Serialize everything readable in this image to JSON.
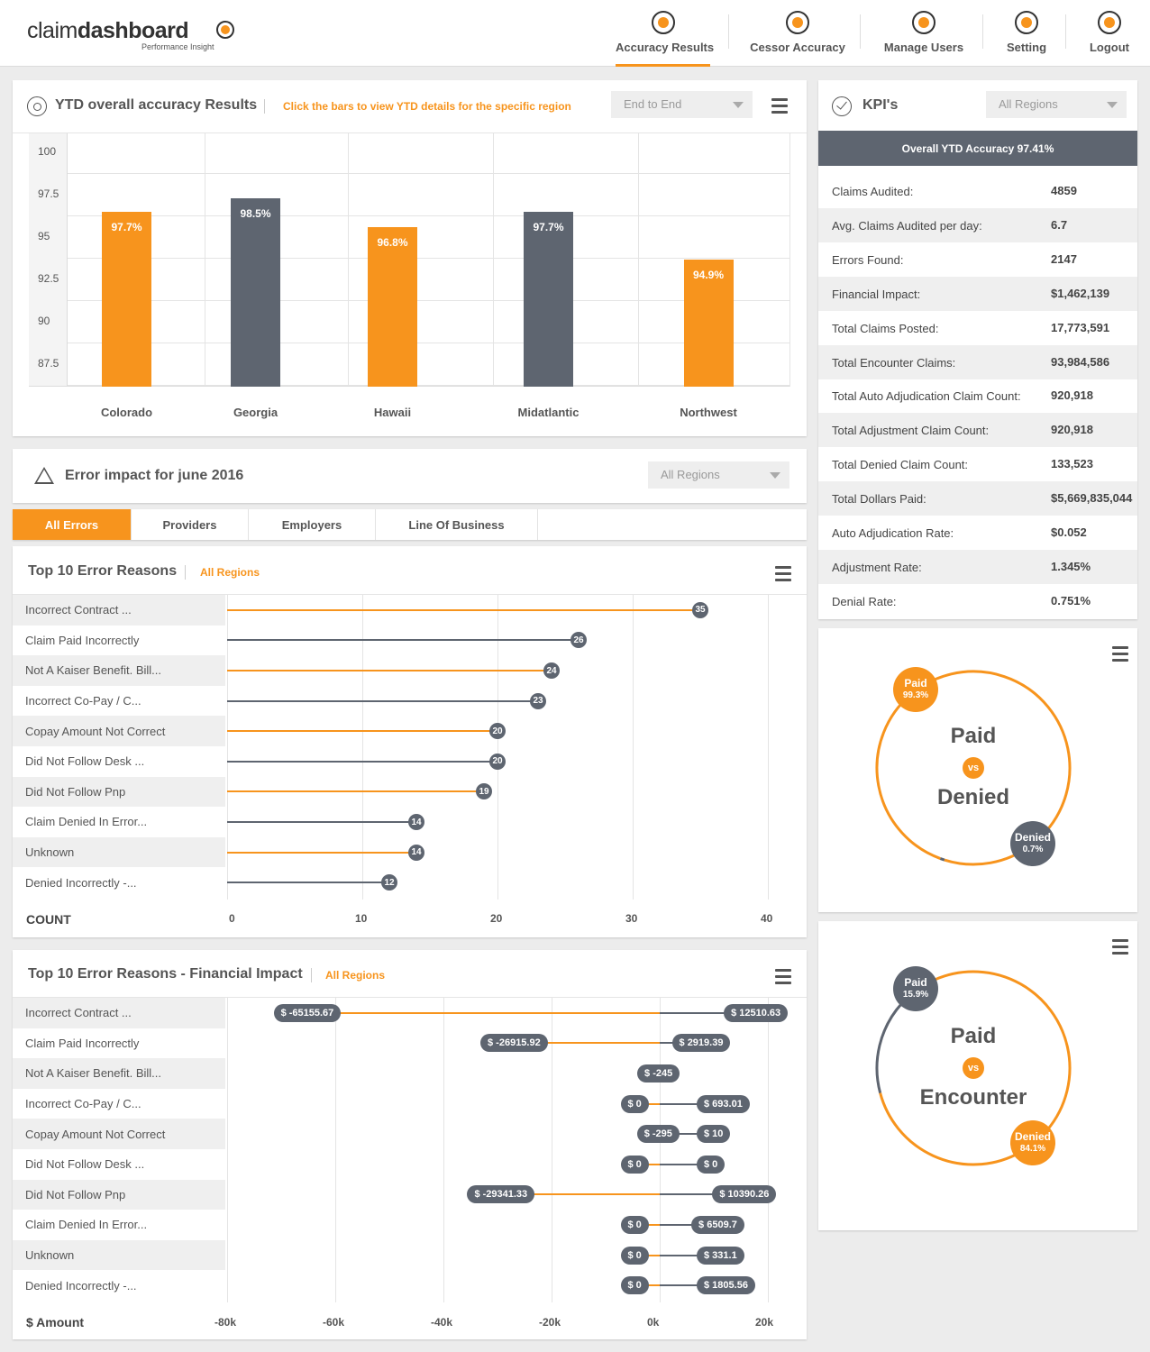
{
  "brand": {
    "logo_light": "claim",
    "logo_bold": "dashboard",
    "tagline": "Performance Insight"
  },
  "nav": [
    {
      "label": "Accuracy Results",
      "icon": "target-icon",
      "active": true
    },
    {
      "label": "Cessor Accuracy",
      "icon": "accuracy-icon",
      "active": false
    },
    {
      "label": "Manage Users",
      "icon": "users-icon",
      "active": false
    },
    {
      "label": "Setting",
      "icon": "gear-icon",
      "active": false
    },
    {
      "label": "Logout",
      "icon": "power-icon",
      "active": false
    }
  ],
  "ytd": {
    "title": "YTD overall accuracy Results",
    "hint": "Click the bars to view YTD details for the specific region",
    "select": "End to End"
  },
  "chart_data": [
    {
      "type": "bar",
      "categories": [
        "Colorado",
        "Georgia",
        "Hawaii",
        "Midatlantic",
        "Northwest"
      ],
      "values": [
        97.7,
        98.5,
        96.8,
        97.7,
        94.9
      ],
      "labels": [
        "97.7%",
        "98.5%",
        "96.8%",
        "97.7%",
        "94.9%"
      ],
      "colors": [
        "#f7941d",
        "#5e6570",
        "#f7941d",
        "#5e6570",
        "#f7941d"
      ],
      "yticks": [
        "100",
        "97.5",
        "95",
        "92.5",
        "90",
        "87.5"
      ],
      "ylim": [
        85,
        100
      ],
      "grid": true
    },
    {
      "type": "bar",
      "orientation": "horizontal",
      "categories": [
        "Incorrect Contract ...",
        "Claim Paid Incorrectly",
        "Not A Kaiser Benefit.  Bill...",
        "Incorrect Co-Pay / C...",
        "Copay Amount Not Correct",
        "Did Not Follow Desk ...",
        "Did Not Follow Pnp",
        "Claim Denied In Error...",
        "Unknown",
        "Denied Incorrectly -..."
      ],
      "values": [
        35,
        26,
        24,
        23,
        20,
        20,
        19,
        14,
        14,
        12
      ],
      "xticks": [
        "0",
        "10",
        "20",
        "30",
        "40"
      ],
      "xlabel": "COUNT",
      "xlim": [
        0,
        40
      ]
    },
    {
      "type": "bar",
      "orientation": "horizontal",
      "categories": [
        "Incorrect Contract ...",
        "Claim Paid Incorrectly",
        "Not A Kaiser Benefit.  Bill...",
        "Incorrect Co-Pay / C...",
        "Copay Amount Not Correct",
        "Did Not Follow Desk ...",
        "Did Not Follow Pnp",
        "Claim Denied In Error...",
        "Unknown",
        "Denied Incorrectly -..."
      ],
      "negative": [
        -65155.67,
        -26915.92,
        -245,
        0,
        -295,
        0,
        -29341.33,
        0,
        0,
        0
      ],
      "positive": [
        12510.63,
        2919.39,
        null,
        693.01,
        10,
        0,
        10390.26,
        6509.7,
        331.1,
        1805.56
      ],
      "negative_labels": [
        "$ -65155.67",
        "$ -26915.92",
        "$ -245",
        "$ 0",
        "$ -295",
        "$ 0",
        "$ -29341.33",
        "$ 0",
        "$ 0",
        "$ 0"
      ],
      "positive_labels": [
        "$ 12510.63",
        "$ 2919.39",
        "",
        "$ 693.01",
        "$ 10",
        "$ 0",
        "$ 10390.26",
        "$ 6509.7",
        "$ 331.1",
        "$ 1805.56"
      ],
      "xticks": [
        "-80k",
        "-60k",
        "-40k",
        "-20k",
        "0k",
        "20k"
      ],
      "xlabel": "$ Amount",
      "xlim": [
        -80000,
        20000
      ]
    }
  ],
  "error_impact": {
    "title": "Error impact for june 2016",
    "select": "All Regions"
  },
  "tabs": [
    {
      "label": "All Errors",
      "active": true
    },
    {
      "label": "Providers",
      "active": false
    },
    {
      "label": "Employers",
      "active": false
    },
    {
      "label": "Line Of Business",
      "active": false
    }
  ],
  "top10": {
    "title": "Top 10 Error Reasons",
    "region": "All Regions"
  },
  "top10fin": {
    "title": "Top 10 Error Reasons - Financial Impact",
    "region": "All Regions"
  },
  "kpi": {
    "title": "KPI's",
    "select": "All Regions",
    "banner": "Overall YTD Accuracy 97.41%",
    "rows": [
      {
        "k": "Claims Audited:",
        "v": "4859"
      },
      {
        "k": "Avg. Claims Audited per day:",
        "v": "6.7"
      },
      {
        "k": "Errors Found:",
        "v": "2147"
      },
      {
        "k": "Financial Impact:",
        "v": "$1,462,139"
      },
      {
        "k": "Total Claims Posted:",
        "v": "17,773,591"
      },
      {
        "k": "Total Encounter Claims:",
        "v": "93,984,586"
      },
      {
        "k": "Total Auto Adjudication Claim Count:",
        "v": "920,918"
      },
      {
        "k": "Total Adjustment Claim Count:",
        "v": "920,918"
      },
      {
        "k": "Total Denied Claim Count:",
        "v": "133,523"
      },
      {
        "k": "Total Dollars Paid:",
        "v": "$5,669,835,044"
      },
      {
        "k": "Auto Adjudication Rate:",
        "v": "$0.052"
      },
      {
        "k": "Adjustment Rate:",
        "v": "1.345%"
      },
      {
        "k": "Denial Rate:",
        "v": "0.751%"
      }
    ]
  },
  "donut1": {
    "line1": "Paid",
    "vs": "vs",
    "line2": "Denied",
    "a_label": "Paid",
    "a_value": "99.3%",
    "a_frac": 0.993,
    "b_label": "Denied",
    "b_value": "0.7%",
    "b_frac": 0.007
  },
  "donut2": {
    "line1": "Paid",
    "vs": "vs",
    "line2": "Encounter",
    "a_label": "Paid",
    "a_value": "15.9%",
    "a_frac": 0.159,
    "b_label": "Denied",
    "b_value": "84.1%",
    "b_frac": 0.841
  },
  "colors": {
    "accent": "#f7941d",
    "dark": "#5e6570"
  }
}
